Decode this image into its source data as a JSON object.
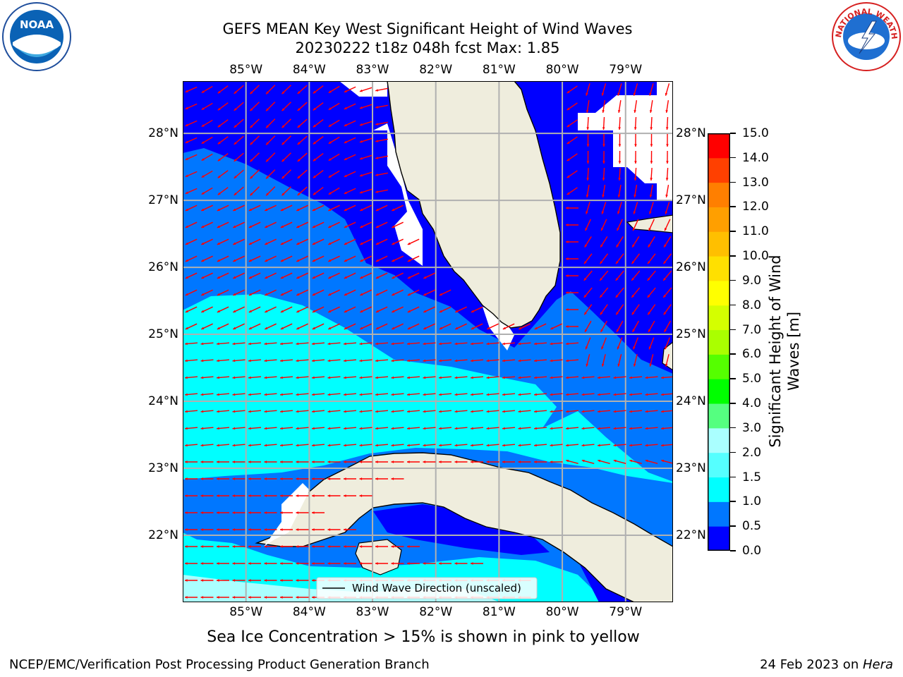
{
  "title": {
    "line1": "GEFS MEAN Key West Significant Height of Wind Waves",
    "line2": "20230222 t18z 048h fcst   Max: 1.85"
  },
  "logos": {
    "left": {
      "name": "noaa-logo",
      "text": "NOAA"
    },
    "right": {
      "name": "nws-logo",
      "text": "NATIONAL WEATHER SERVICE"
    }
  },
  "map": {
    "lon_range": [
      -86.0,
      -78.25
    ],
    "lat_range": [
      21.0,
      28.78
    ],
    "lon_ticks": [
      "85°W",
      "84°W",
      "83°W",
      "82°W",
      "81°W",
      "80°W",
      "79°W"
    ],
    "lat_ticks": [
      "28°N",
      "27°N",
      "26°N",
      "25°N",
      "24°N",
      "23°N",
      "22°N"
    ],
    "grid": true,
    "land_color": "#efeddd",
    "arrow_color": "#ff0000",
    "legend": {
      "label": "Wind Wave Direction (unscaled)",
      "placement": "bottom-center"
    }
  },
  "colorbar": {
    "label_line1": "Significant Height of Wind",
    "label_line2": "Waves [m]",
    "ticks": [
      "0.0",
      "0.5",
      "1.0",
      "1.5",
      "2.0",
      "3.0",
      "4.0",
      "5.0",
      "6.0",
      "7.0",
      "8.0",
      "9.0",
      "10.0",
      "11.0",
      "12.0",
      "13.0",
      "14.0",
      "15.0"
    ],
    "colors": [
      "#0000ff",
      "#0077ff",
      "#00ffff",
      "#55ffff",
      "#aaffff",
      "#55ff80",
      "#00ff00",
      "#55ff00",
      "#aaff00",
      "#d4ff00",
      "#ffff00",
      "#ffe000",
      "#ffbf00",
      "#ff9f00",
      "#ff7f00",
      "#ff4000",
      "#ff0000"
    ]
  },
  "sea_ice_note": "Sea Ice Concentration > 15% is shown in pink to yellow",
  "footer": {
    "left": "NCEP/EMC/Verification Post Processing Product Generation Branch",
    "right_date": "24 Feb 2023 on ",
    "right_host": "Hera"
  }
}
